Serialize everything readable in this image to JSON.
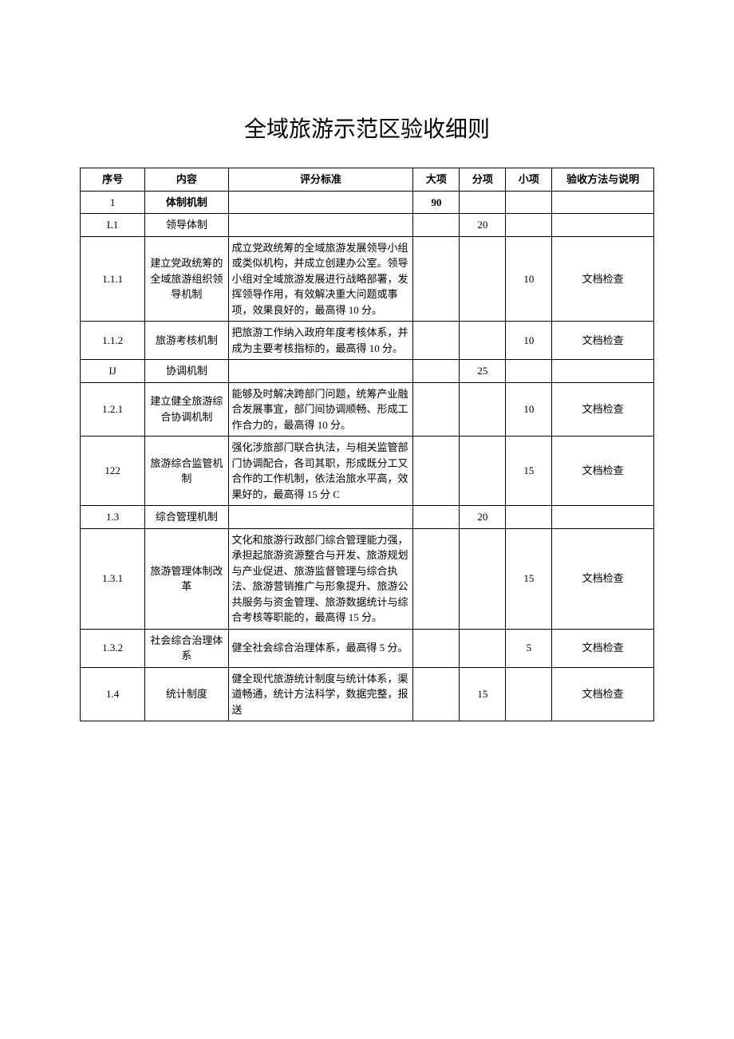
{
  "title": "全域旅游示范区验收细则",
  "columns": {
    "seq": "序号",
    "content": "内容",
    "std": "评分标准",
    "major": "大项",
    "sub": "分项",
    "item": "小项",
    "method": "验收方法与说明"
  },
  "rows": [
    {
      "seq": "1",
      "content": "体制机制",
      "std": "",
      "major": "90",
      "sub": "",
      "item": "",
      "method": "",
      "content_bold": true,
      "major_bold": true
    },
    {
      "seq": "L1",
      "content": "领导体制",
      "std": "",
      "major": "",
      "sub": "20",
      "item": "",
      "method": ""
    },
    {
      "seq": "1.1.1",
      "content": "建立党政统筹的全域旅游组织领导机制",
      "std": "成立党政统筹的全域旅游发展领导小组或类似机构，并成立创建办公室。领导小组对全域旅游发展进行战略部署，发挥领导作用，有效解决重大问题或事项，效果良好的，最高得 10 分。",
      "major": "",
      "sub": "",
      "item": "10",
      "method": "文档检查"
    },
    {
      "seq": "1.1.2",
      "content": "旅游考核机制",
      "std": "把旅游工作纳入政府年度考核体系，并成为主要考核指标的，最高得 10 分。",
      "major": "",
      "sub": "",
      "item": "10",
      "method": "文档检查"
    },
    {
      "seq": "IJ",
      "content": "协调机制",
      "std": "",
      "major": "",
      "sub": "25",
      "item": "",
      "method": ""
    },
    {
      "seq": "1.2.1",
      "content": "建立健全旅游综合协调机制",
      "std": "能够及时解决跨部门问题，统筹产业融合发展事宜，部门间协调顺畅、形成工作合力的，最高得 10 分。",
      "major": "",
      "sub": "",
      "item": "10",
      "method": "文档检查"
    },
    {
      "seq": "122",
      "content": "旅游综合监管机制",
      "std": "强化涉旅部门联合执法，与相关监管部门协调配合，各司其职，形成既分工又合作的工作机制，依法治旅水平高，效果好的，最高得 15 分 C",
      "major": "",
      "sub": "",
      "item": "15",
      "method": "文档检查"
    },
    {
      "seq": "1.3",
      "content": "综合管理机制",
      "std": "",
      "major": "",
      "sub": "20",
      "item": "",
      "method": ""
    },
    {
      "seq": "1.3.1",
      "content": "旅游管理体制改革",
      "std": "文化和旅游行政部门综合管理能力强，承担起旅游资源整合与开发、旅游规划与产业促进、旅游监督管理与综合执法、旅游营销推广与形象提升、旅游公共服务与资金管理、旅游数据统计与综合考核等职能的，最高得 15 分。",
      "major": "",
      "sub": "",
      "item": "15",
      "method": "文档检查"
    },
    {
      "seq": "1.3.2",
      "content": "社会综合治理体系",
      "std": "健全社会综合治理体系，最高得 5 分。",
      "major": "",
      "sub": "",
      "item": "5",
      "method": "文档检查"
    },
    {
      "seq": "1.4",
      "content": "统计制度",
      "std": "健全现代旅游统计制度与统计体系，渠道畅通，统计方法科学，数据完整，报送",
      "major": "",
      "sub": "15",
      "item": "",
      "method": "文档检查"
    }
  ]
}
